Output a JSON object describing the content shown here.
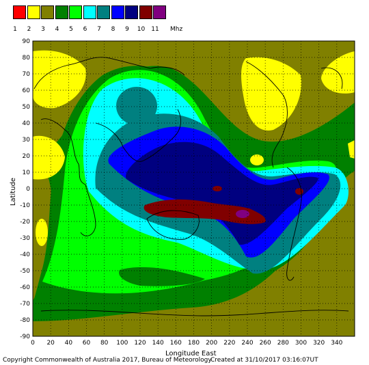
{
  "legend": {
    "labels": [
      "1",
      "2",
      "3",
      "4",
      "5",
      "6",
      "7",
      "8",
      "9",
      "10",
      "11"
    ],
    "colors": [
      "#ff0000",
      "#ffff00",
      "#808000",
      "#008000",
      "#00ff00",
      "#00ffff",
      "#008080",
      "#0000ff",
      "#000080",
      "#800000",
      "#800080"
    ],
    "unit": "Mhz"
  },
  "axes": {
    "xlabel": "Longitude East",
    "ylabel": "Latitude",
    "x_ticks": [
      "0",
      "20",
      "40",
      "60",
      "80",
      "100",
      "120",
      "140",
      "160",
      "180",
      "200",
      "220",
      "240",
      "260",
      "280",
      "300",
      "320",
      "340"
    ],
    "y_ticks": [
      "90",
      "80",
      "70",
      "60",
      "50",
      "40",
      "30",
      "20",
      "10",
      "0",
      "-10",
      "-20",
      "-30",
      "-40",
      "-50",
      "-60",
      "-70",
      "-80",
      "-90"
    ]
  },
  "footer": {
    "copyright": "Copyright Commonwealth of Australia 2017, Bureau of Meteorology",
    "created": "Created at 31/10/2017 03:16:07UT"
  }
}
